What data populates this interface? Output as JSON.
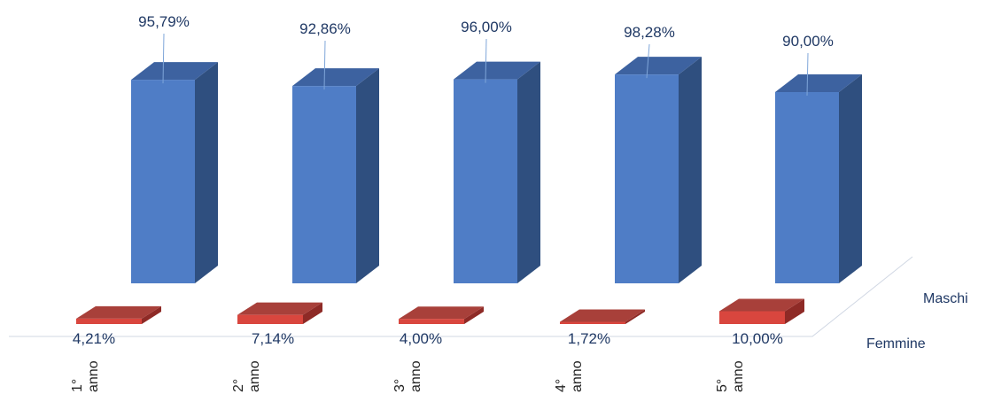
{
  "chart_data": {
    "type": "bar",
    "title": "",
    "xlabel": "",
    "ylabel": "",
    "categories": [
      "1° anno",
      "2° anno",
      "3° anno",
      "4° anno",
      "5° anno"
    ],
    "category_lines": [
      [
        "1°",
        "anno"
      ],
      [
        "2°",
        "anno"
      ],
      [
        "3°",
        "anno"
      ],
      [
        "4°",
        "anno"
      ],
      [
        "5°",
        "anno"
      ]
    ],
    "series": [
      {
        "name": "Maschi",
        "values": [
          95.79,
          92.86,
          96.0,
          98.28,
          90.0
        ],
        "labels": [
          "95,79%",
          "92,86%",
          "96,00%",
          "98,28%",
          "90,00%"
        ]
      },
      {
        "name": "Femmine",
        "values": [
          4.21,
          7.14,
          4.0,
          1.72,
          10.0
        ],
        "labels": [
          "4,21%",
          "7,14%",
          "4,00%",
          "1,72%",
          "10,00%"
        ]
      }
    ],
    "ylim": [
      0,
      100
    ],
    "grid": false,
    "legend": "right (3D depth axis labels)",
    "colors": {
      "maschi_front": "#4f7dc6",
      "maschi_side": "#2f4f7f",
      "maschi_top": "#3d62a0",
      "femmine_front": "#d9463e",
      "femmine_side": "#8e2a26",
      "femmine_top": "#a8403a",
      "label_text": "#1f3864",
      "leader_line": "#7fa6d9",
      "floor_line": "#d0d7e3"
    }
  }
}
